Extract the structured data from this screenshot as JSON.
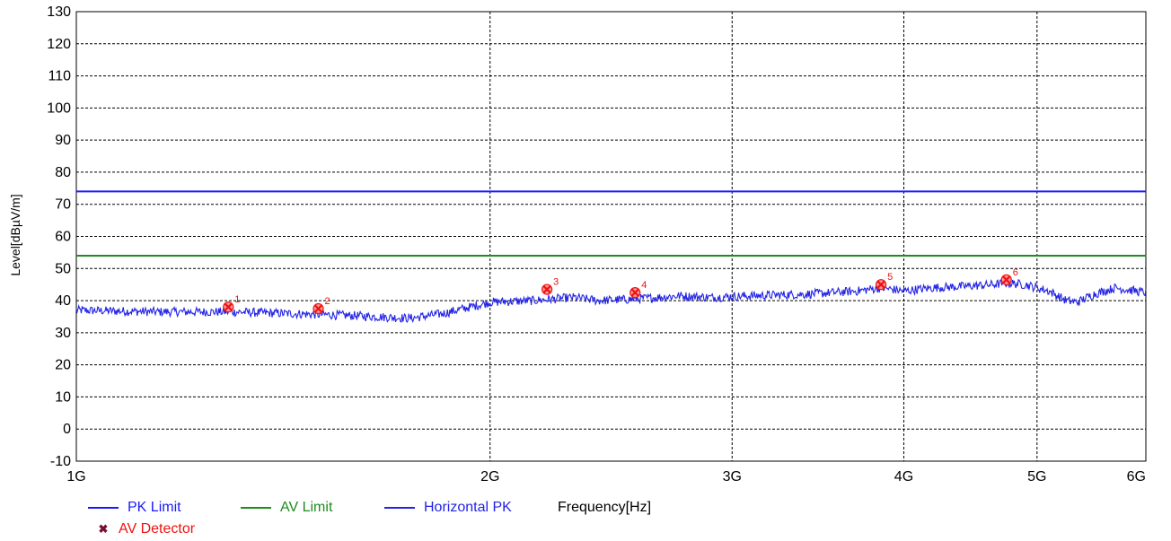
{
  "chart_data": {
    "type": "line",
    "xlabel": "Frequency[Hz]",
    "ylabel": "Level[dBµV/m]",
    "x_scale": "log",
    "xlim": [
      1000000000,
      6000000000
    ],
    "ylim": [
      -10,
      130
    ],
    "grid": true,
    "legend_position": "bottom-left",
    "x_ticks": [
      {
        "value": 1000000000,
        "label": "1G"
      },
      {
        "value": 2000000000,
        "label": "2G"
      },
      {
        "value": 3000000000,
        "label": "3G"
      },
      {
        "value": 4000000000,
        "label": "4G"
      },
      {
        "value": 5000000000,
        "label": "5G"
      },
      {
        "value": 6000000000,
        "label": "6G"
      }
    ],
    "y_ticks": [
      -10,
      0,
      10,
      20,
      30,
      40,
      50,
      60,
      70,
      80,
      90,
      100,
      110,
      120,
      130
    ],
    "series": [
      {
        "name": "PK Limit",
        "color": "#1a1aff",
        "x": [
          1000000000,
          6000000000
        ],
        "y": [
          74,
          74
        ]
      },
      {
        "name": "AV Limit",
        "color": "#1e8c1e",
        "x": [
          1000000000,
          6000000000
        ],
        "y": [
          54,
          54
        ]
      },
      {
        "name": "Horizontal PK",
        "color": "#2323e6",
        "x": [
          1000000000,
          1150000000,
          1300000000,
          1420000000,
          1550000000,
          1650000000,
          1750000000,
          1850000000,
          2000000000,
          2150000000,
          2300000000,
          2400000000,
          2550000000,
          2750000000,
          2900000000,
          3100000000,
          3400000000,
          3700000000,
          3850000000,
          4000000000,
          4200000000,
          4450000000,
          4650000000,
          4750000000,
          4900000000,
          5100000000,
          5250000000,
          5350000000,
          5500000000,
          5700000000,
          6000000000
        ],
        "y": [
          37,
          36.5,
          36.5,
          36,
          35.5,
          35,
          34.5,
          36,
          39.5,
          40,
          41,
          40,
          40.5,
          41.5,
          41,
          41.5,
          42,
          43,
          44,
          43,
          44,
          44.5,
          45,
          45.5,
          45,
          43,
          40,
          39.5,
          42,
          44,
          42.5
        ]
      },
      {
        "name": "AV Detector",
        "color": "#ee1111",
        "marker": "x",
        "points": [
          {
            "label": "1",
            "x": 1290000000,
            "y": 38
          },
          {
            "label": "2",
            "x": 1500000000,
            "y": 37.5
          },
          {
            "label": "3",
            "x": 2200000000,
            "y": 43.5
          },
          {
            "label": "4",
            "x": 2550000000,
            "y": 42.5
          },
          {
            "label": "5",
            "x": 3850000000,
            "y": 45
          },
          {
            "label": "6",
            "x": 4750000000,
            "y": 46.5
          }
        ]
      }
    ]
  },
  "legend": {
    "pk_limit": "PK Limit",
    "av_limit": "AV Limit",
    "horizontal_pk": "Horizontal PK",
    "frequency_label": "Frequency[Hz]",
    "av_detector": "AV Detector"
  },
  "colors": {
    "pk_limit": "#1a1aff",
    "av_limit": "#1e8c1e",
    "horizontal_pk": "#2323e6",
    "av_detector_text": "#ee1111",
    "av_detector_marker": "#7a1030",
    "frequency_text": "#000000"
  }
}
